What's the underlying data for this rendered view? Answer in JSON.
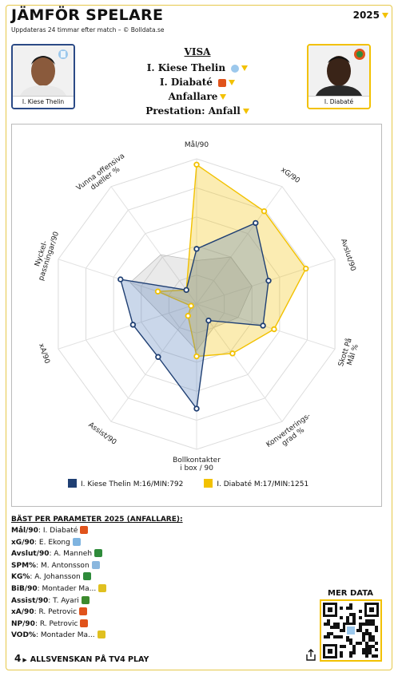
{
  "header": {
    "title": "JÄMFÖR SPELARE",
    "subtitle": "Uppdateras 24 timmar efter match – © Bolldata.se",
    "year": "2025"
  },
  "players": {
    "left": {
      "name": "I. Kiese Thelin",
      "color": "#1f3f73"
    },
    "right": {
      "name": "I. Diabaté",
      "color": "#f2c100"
    }
  },
  "visa": {
    "heading": "VISA",
    "player1": "I. Kiese Thelin",
    "player2": "I. Diabaté",
    "position": "Anfallare",
    "performance": "Prestation: Anfall"
  },
  "chart_data": {
    "type": "radar",
    "axes": [
      "Mål/90",
      "xG/90",
      "Avslut/90",
      "Skott På Mål %",
      "Konverterings-grad %",
      "Bollkontakter i box / 90",
      "Assist/90",
      "xA/90",
      "Nyckel-passningar/90",
      "Vunna offensiva dueller %"
    ],
    "range": [
      0,
      100
    ],
    "series": [
      {
        "name": "I. Kiese Thelin M:16/MIN:792",
        "values": [
          38,
          69,
          52,
          48,
          14,
          72,
          45,
          46,
          55,
          12
        ]
      },
      {
        "name": "I. Diabaté M:17/MIN:1251",
        "values": [
          96,
          79,
          79,
          56,
          42,
          36,
          10,
          4,
          28,
          12
        ]
      }
    ],
    "ghost_values": [
      0,
      0,
      0,
      0,
      0,
      0,
      0,
      0,
      0,
      0
    ]
  },
  "best": {
    "heading": "BÄST PER PARAMETER 2025 (ANFALLARE):",
    "rows": [
      {
        "param": "Mål/90",
        "player": "I. Diabaté",
        "club_color": "#e0531b"
      },
      {
        "param": "xG/90",
        "player": "E. Ekong",
        "club_color": "#7fb4e0"
      },
      {
        "param": "Avslut/90",
        "player": "A. Manneh",
        "club_color": "#2e8b3a"
      },
      {
        "param": "SPM%",
        "player": "M. Antonsson",
        "club_color": "#8ab7de"
      },
      {
        "param": "KG%",
        "player": "A. Johansson",
        "club_color": "#2e8b3a"
      },
      {
        "param": "BiB/90",
        "player": "Montader Ma...",
        "club_color": "#e0c020"
      },
      {
        "param": "Assist/90",
        "player": "T. Ayari",
        "club_color": "#3c8a2e"
      },
      {
        "param": "xA/90",
        "player": "R. Petrovic",
        "club_color": "#e0531b"
      },
      {
        "param": "NP/90",
        "player": "R. Petrovic",
        "club_color": "#e0531b"
      },
      {
        "param": "VOD%",
        "player": "Montader Ma...",
        "club_color": "#e0c020"
      }
    ]
  },
  "more": {
    "label": "MER DATA"
  },
  "footer": {
    "label": "ALLSVENSKAN PÅ TV4 PLAY",
    "logo": "4"
  },
  "icons": {
    "share": "share-icon",
    "dropdown": "caret-down-icon",
    "club_left": "mff-crest-icon",
    "club_right": "ifk-crest-icon"
  }
}
